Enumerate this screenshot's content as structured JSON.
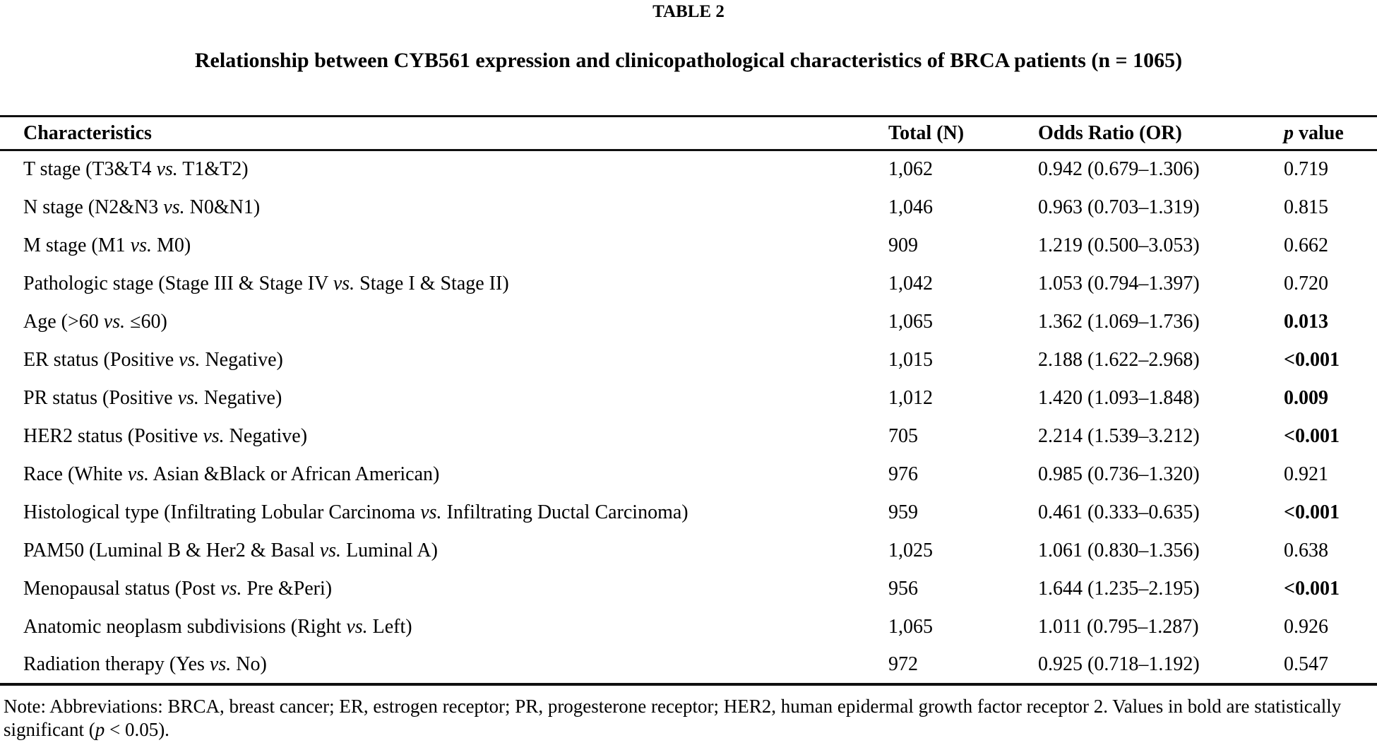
{
  "page": {
    "label": "TABLE 2",
    "title": "Relationship between CYB561 expression and clinicopathological characteristics of BRCA patients (n = 1065)"
  },
  "table": {
    "headers": {
      "characteristics": "Characteristics",
      "total": "Total (N)",
      "odds_ratio": "Odds Ratio (OR)",
      "p_italic": "p",
      "p_rest": " value"
    },
    "rows": [
      {
        "char_pre": "T stage (T3&T4 ",
        "vs": "vs.",
        "char_post": " T1&T2)",
        "total": "1,062",
        "or": "0.942 (0.679–1.306)",
        "p": "0.719",
        "p_class": ""
      },
      {
        "char_pre": "N stage (N2&N3 ",
        "vs": "vs.",
        "char_post": " N0&N1)",
        "total": "1,046",
        "or": "0.963 (0.703–1.319)",
        "p": "0.815",
        "p_class": ""
      },
      {
        "char_pre": "M stage (M1 ",
        "vs": "vs.",
        "char_post": " M0)",
        "total": "909",
        "or": "1.219 (0.500–3.053)",
        "p": "0.662",
        "p_class": ""
      },
      {
        "char_pre": "Pathologic stage (Stage III & Stage IV ",
        "vs": "vs.",
        "char_post": " Stage I & Stage II)",
        "total": "1,042",
        "or": "1.053 (0.794–1.397)",
        "p": "0.720",
        "p_class": ""
      },
      {
        "char_pre": "Age (>60 ",
        "vs": "vs.",
        "char_post": " ≤60)",
        "total": "1,065",
        "or": "1.362 (1.069–1.736)",
        "p": "0.013",
        "p_class": "sig"
      },
      {
        "char_pre": "ER status (Positive ",
        "vs": "vs.",
        "char_post": " Negative)",
        "total": "1,015",
        "or": "2.188 (1.622–2.968)",
        "p": "<0.001",
        "p_class": "sig"
      },
      {
        "char_pre": "PR status (Positive ",
        "vs": "vs.",
        "char_post": " Negative)",
        "total": "1,012",
        "or": "1.420 (1.093–1.848)",
        "p": "0.009",
        "p_class": "sig"
      },
      {
        "char_pre": "HER2 status (Positive ",
        "vs": "vs.",
        "char_post": " Negative)",
        "total": "705",
        "or": "2.214 (1.539–3.212)",
        "p": "<0.001",
        "p_class": "sig"
      },
      {
        "char_pre": "Race (White ",
        "vs": "vs.",
        "char_post": " Asian &Black or African American)",
        "total": "976",
        "or": "0.985 (0.736–1.320)",
        "p": "0.921",
        "p_class": ""
      },
      {
        "char_pre": "Histological type (Infiltrating Lobular Carcinoma ",
        "vs": "vs.",
        "char_post": " Infiltrating Ductal Carcinoma)",
        "total": "959",
        "or": "0.461 (0.333–0.635)",
        "p": "<0.001",
        "p_class": "sig"
      },
      {
        "char_pre": "PAM50 (Luminal B & Her2 & Basal ",
        "vs": "vs.",
        "char_post": " Luminal A)",
        "total": "1,025",
        "or": "1.061 (0.830–1.356)",
        "p": "0.638",
        "p_class": ""
      },
      {
        "char_pre": "Menopausal status (Post ",
        "vs": "vs.",
        "char_post": " Pre &Peri)",
        "total": "956",
        "or": "1.644 (1.235–2.195)",
        "p": "<0.001",
        "p_class": "sig"
      },
      {
        "char_pre": "Anatomic neoplasm subdivisions (Right ",
        "vs": "vs.",
        "char_post": " Left)",
        "total": "1,065",
        "or": "1.011 (0.795–1.287)",
        "p": "0.926",
        "p_class": ""
      },
      {
        "char_pre": "Radiation therapy (Yes ",
        "vs": "vs.",
        "char_post": " No)",
        "total": "972",
        "or": "0.925 (0.718–1.192)",
        "p": "0.547",
        "p_class": ""
      }
    ]
  },
  "note": {
    "pre": "Note: Abbreviations: BRCA, breast cancer; ER, estrogen receptor; PR, progesterone receptor; HER2, human epidermal growth factor receptor 2. Values in bold are statistically significant (",
    "p_italic": "p",
    "post": " < 0.05)."
  }
}
